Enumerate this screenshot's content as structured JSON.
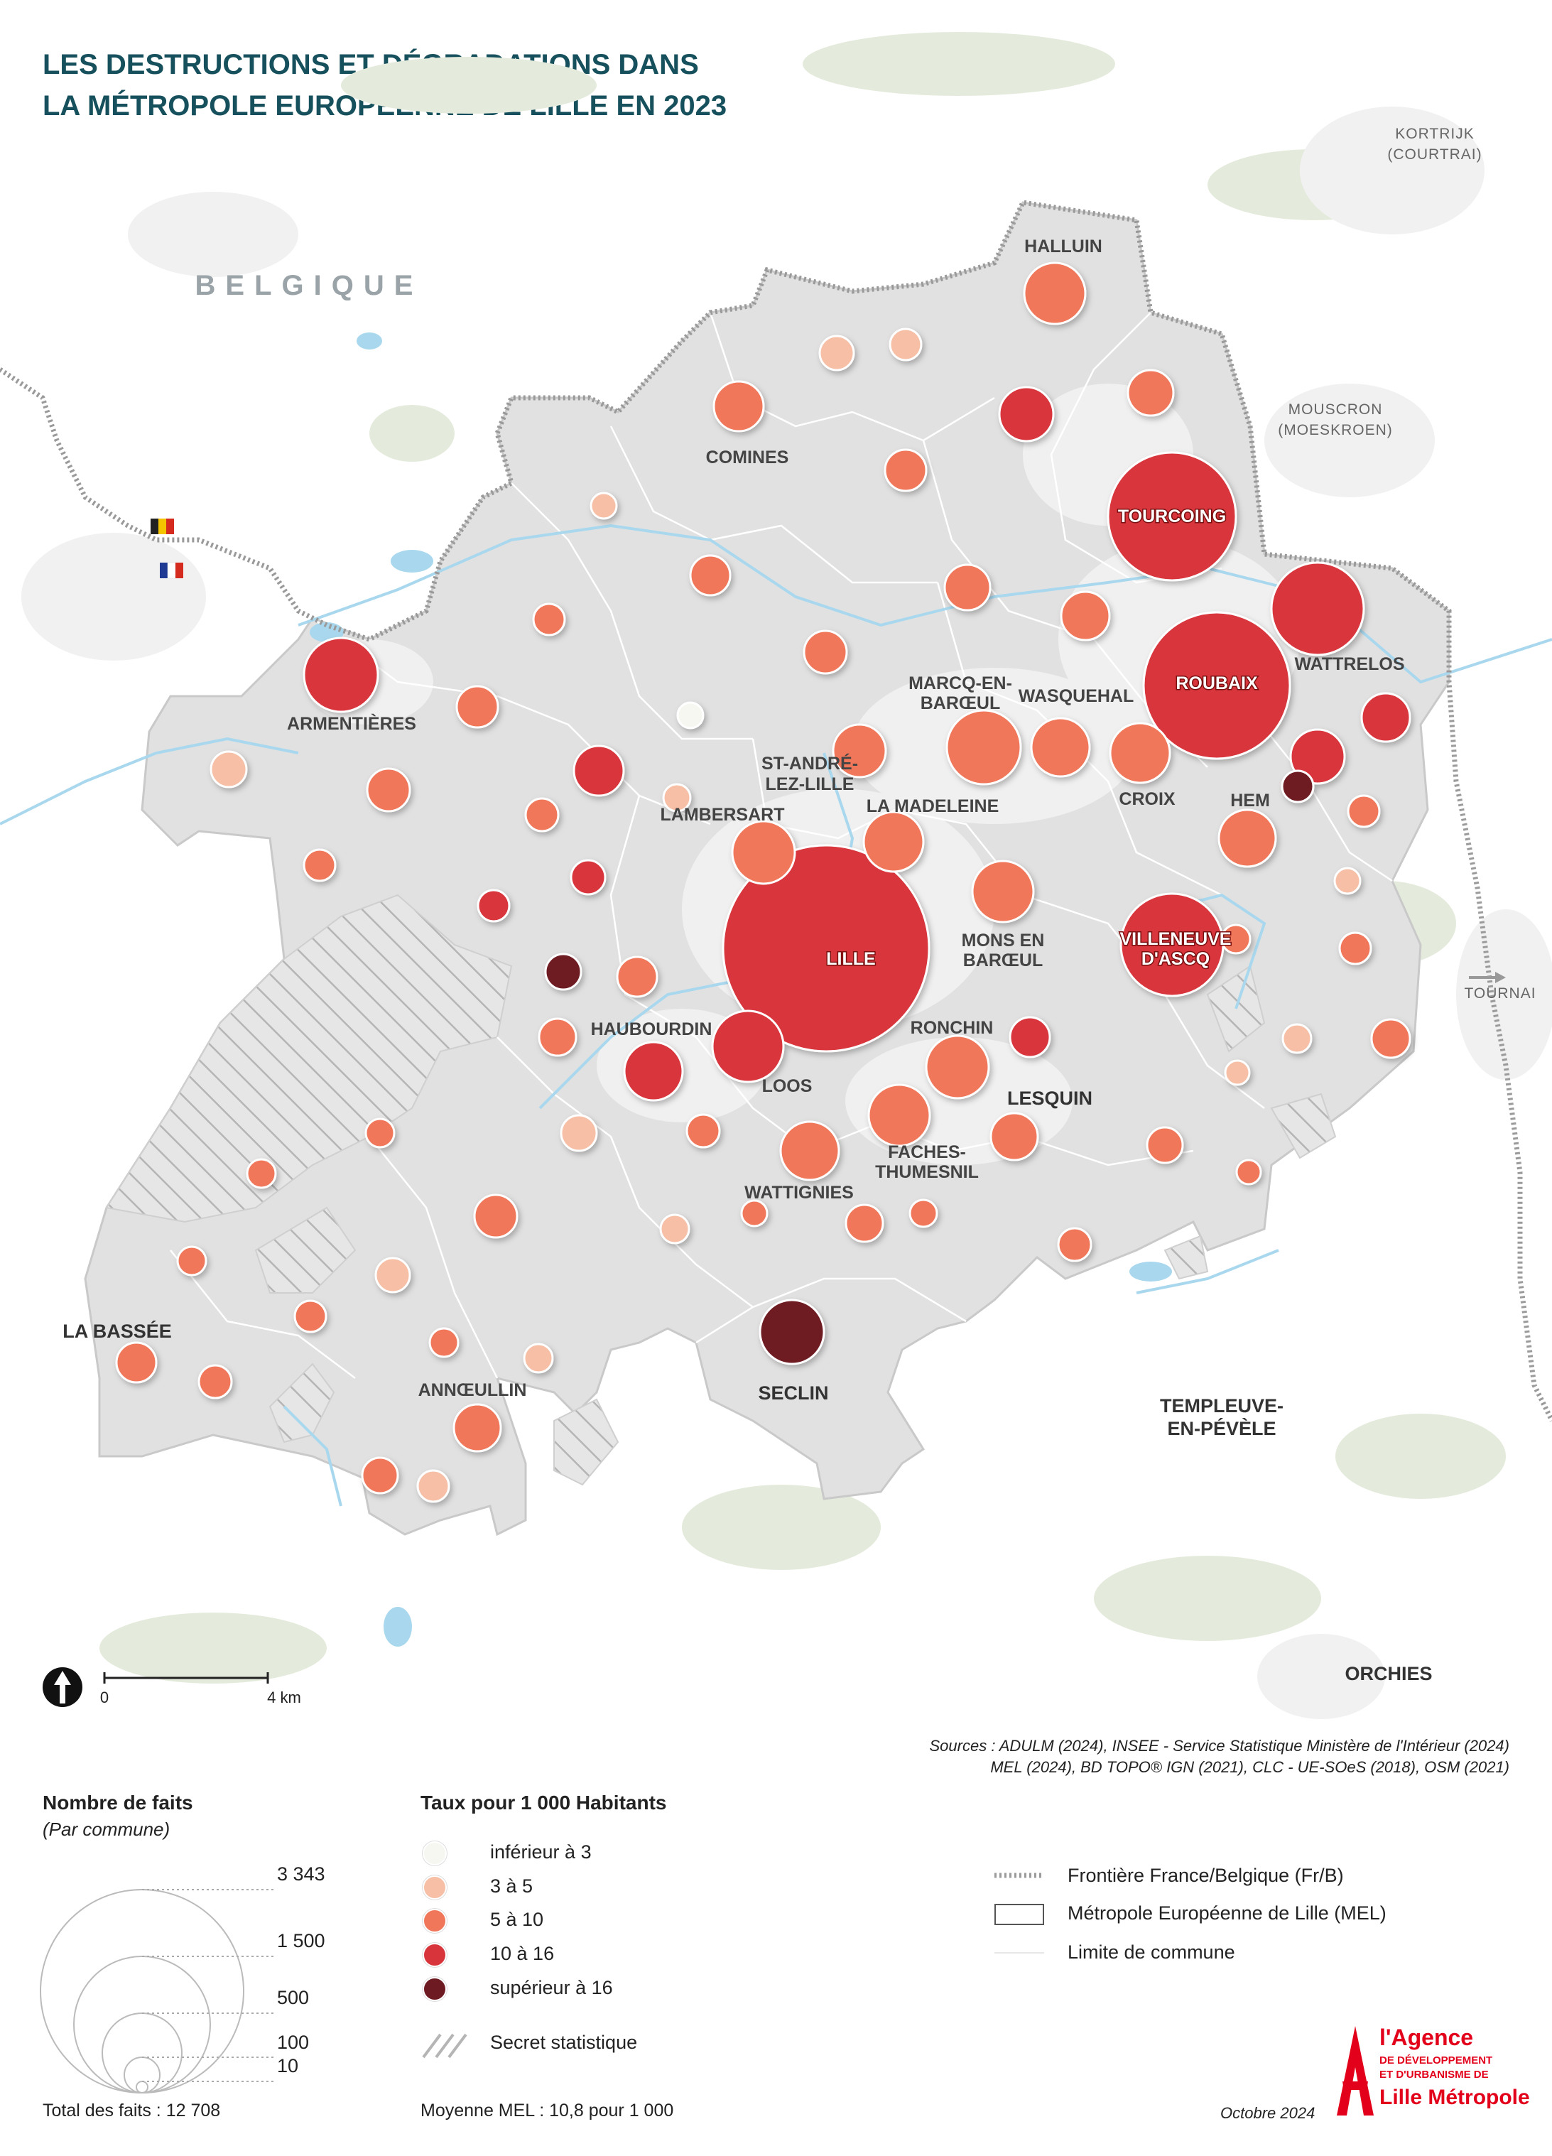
{
  "title": {
    "line1": "LES DESTRUCTIONS ET DÉGRADATIONS DANS",
    "line2": "LA MÉTROPOLE EUROPÉENNE DE LILLE EN 2023"
  },
  "map_labels": {
    "belgique": "BELGIQUE",
    "kortrijk_1": "KORTRIJK",
    "kortrijk_2": "(COURTRAI)",
    "mouscron_1": "MOUSCRON",
    "mouscron_2": "(MOESKROEN)",
    "tournai": "TOURNAI",
    "halluin": "HALLUIN",
    "comines": "COMINES",
    "tourcoing": "TOURCOING",
    "roubaix": "ROUBAIX",
    "wattrelos": "WATTRELOS",
    "armentieres": "ARMENTIÈRES",
    "marcq_1": "MARCQ-EN-",
    "marcq_2": "BARŒUL",
    "wasquehal": "WASQUEHAL",
    "st_andre_1": "ST-ANDRÉ-",
    "st_andre_2": "LEZ-LILLE",
    "la_madeleine": "LA MADELEINE",
    "lambersart": "LAMBERSART",
    "croix": "CROIX",
    "hem": "HEM",
    "lille": "LILLE",
    "mons_1": "MONS EN",
    "mons_2": "BARŒUL",
    "villeneuve_1": "VILLENEUVE",
    "villeneuve_2": "D'ASCQ",
    "haubourdin": "HAUBOURDIN",
    "ronchin": "RONCHIN",
    "loos": "LOOS",
    "lesquin": "LESQUIN",
    "faches_1": "FACHES-",
    "faches_2": "THUMESNIL",
    "wattignies": "WATTIGNIES",
    "la_bassee": "LA BASSÉE",
    "anoeullin": "ANNŒULLIN",
    "seclin": "SECLIN",
    "templeuve_1": "TEMPLEUVE-",
    "templeuve_2": "EN-PÉVÈLE",
    "orchies": "ORCHIES"
  },
  "scale": {
    "zero": "0",
    "four": "4 km"
  },
  "sources": {
    "line1": "Sources :  ADULM (2024), INSEE - Service Statistique Ministère de l'Intérieur (2024)",
    "line2": "MEL (2024), BD TOPO® IGN (2021), CLC - UE-SOeS (2018), OSM (2021)"
  },
  "legend_size": {
    "title": "Nombre de faits",
    "subtitle": "(Par commune)",
    "values": [
      "3 343",
      "1 500",
      "500",
      "100",
      "10"
    ],
    "total": "Total des faits : 12 708"
  },
  "legend_rate": {
    "title": "Taux pour 1 000 Habitants",
    "classes": [
      {
        "label": "inférieur à 3",
        "color": "#f7f7f2"
      },
      {
        "label": "3 à 5",
        "color": "#f6bfa6"
      },
      {
        "label": "5 à 10",
        "color": "#f0775a"
      },
      {
        "label": "10 à 16",
        "color": "#d8343c"
      },
      {
        "label": "supérieur à 16",
        "color": "#6e1a22"
      }
    ],
    "secret": "Secret statistique",
    "mean": "Moyenne MEL : 10,8 pour 1 000"
  },
  "legend_lines": {
    "border": "Frontière France/Belgique (Fr/B)",
    "mel": "Métropole Européenne de Lille (MEL)",
    "commune": "Limite de commune"
  },
  "date": "Octobre 2024",
  "logo": {
    "line1": "l'Agence",
    "line2": "DE DÉVELOPPEMENT",
    "line3": "ET D'URBANISME DE",
    "line4": "Lille Métropole"
  },
  "colors": {
    "mel_fill": "#e3e3e3",
    "urban": "#f1f1f1",
    "water": "#a9d8ee",
    "green": "#dde6d5",
    "title": "#16505c",
    "accent": "#e2001a"
  }
}
